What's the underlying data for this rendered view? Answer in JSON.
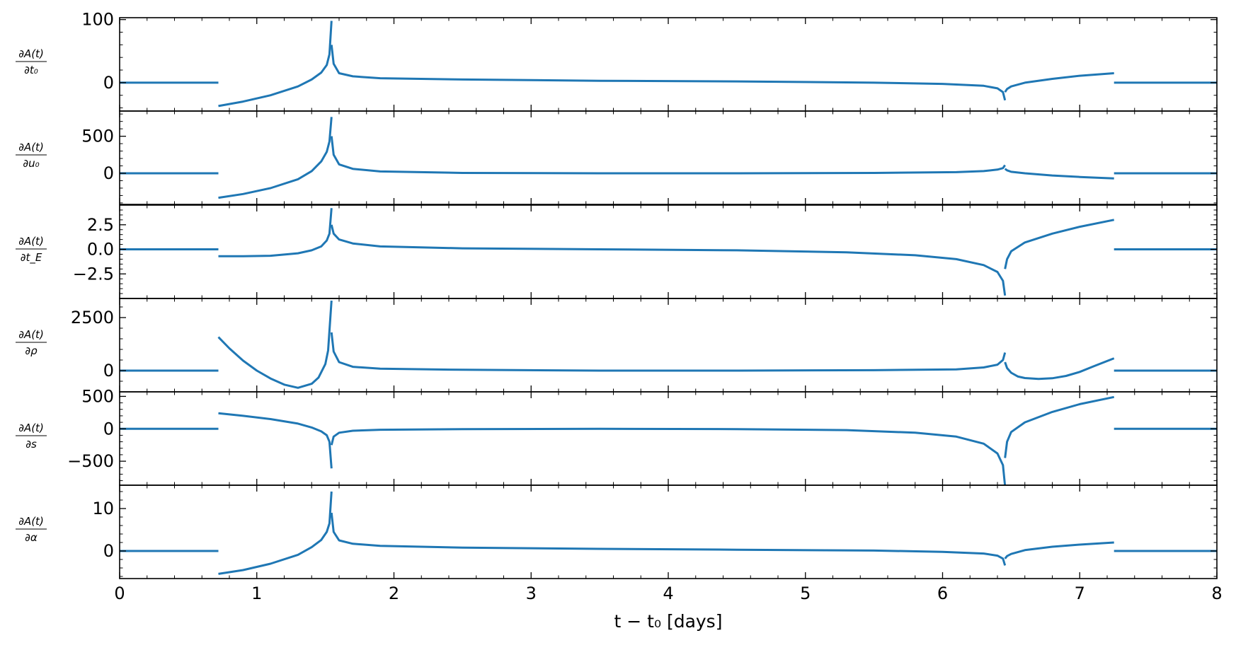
{
  "chart_data": {
    "type": "line",
    "xlabel": "t − t₀ [days]",
    "xlim": [
      0,
      8
    ],
    "x_ticks": [
      "0",
      "1",
      "2",
      "3",
      "4",
      "5",
      "6",
      "7",
      "8"
    ],
    "line_color": "#1f77b4",
    "grid": false,
    "legend": "none",
    "panels": [
      {
        "ylabel_num": "∂A(t)",
        "ylabel_den": "∂t₀",
        "ylim": [
          -45,
          103
        ],
        "y_ticks": [
          {
            "v": 100,
            "label": "100"
          },
          {
            "v": 0,
            "label": "0"
          }
        ],
        "series": [
          {
            "x": [
              0,
              0.72
            ],
            "y": [
              0,
              0
            ]
          },
          {
            "x": [
              0.72,
              0.9,
              1.1,
              1.3,
              1.4,
              1.47,
              1.51,
              1.53,
              1.545
            ],
            "y": [
              -37,
              -30,
              -20,
              -6,
              5,
              16,
              28,
              45,
              98
            ]
          },
          {
            "x": [
              1.545,
              1.56,
              1.6,
              1.7,
              1.9,
              2.5,
              3.5,
              4.5,
              5.5,
              6.0,
              6.3,
              6.4,
              6.44,
              6.455
            ],
            "y": [
              60,
              30,
              15,
              10,
              7,
              5,
              3,
              2,
              0,
              -2,
              -5,
              -9,
              -15,
              -28
            ]
          },
          {
            "x": [
              6.455,
              6.47,
              6.5,
              6.6,
              6.8,
              7.0,
              7.25
            ],
            "y": [
              -15,
              -10,
              -6,
              0,
              6,
              11,
              15
            ]
          },
          {
            "x": [
              7.25,
              8
            ],
            "y": [
              0,
              0
            ]
          }
        ]
      },
      {
        "ylabel_num": "∂A(t)",
        "ylabel_den": "∂u₀",
        "ylim": [
          -420,
          840
        ],
        "y_ticks": [
          {
            "v": 500,
            "label": "500"
          },
          {
            "v": 0,
            "label": "0"
          }
        ],
        "series": [
          {
            "x": [
              0,
              0.72
            ],
            "y": [
              0,
              0
            ]
          },
          {
            "x": [
              0.72,
              0.9,
              1.1,
              1.3,
              1.4,
              1.47,
              1.51,
              1.53,
              1.545
            ],
            "y": [
              -330,
              -280,
              -200,
              -80,
              30,
              160,
              290,
              430,
              760
            ]
          },
          {
            "x": [
              1.545,
              1.56,
              1.6,
              1.7,
              1.9,
              2.5,
              3.5,
              4.5,
              5.5,
              6.1,
              6.3,
              6.4,
              6.44,
              6.455
            ],
            "y": [
              500,
              250,
              120,
              60,
              25,
              5,
              0,
              0,
              5,
              15,
              30,
              50,
              70,
              110
            ]
          },
          {
            "x": [
              6.455,
              6.47,
              6.5,
              6.6,
              6.8,
              7.0,
              7.25
            ],
            "y": [
              60,
              40,
              20,
              0,
              -30,
              -50,
              -70
            ]
          },
          {
            "x": [
              7.25,
              8
            ],
            "y": [
              0,
              0
            ]
          }
        ]
      },
      {
        "ylabel_num": "∂A(t)",
        "ylabel_den": "∂t_E",
        "ylim": [
          -5.0,
          4.5
        ],
        "y_ticks": [
          {
            "v": 2.5,
            "label": "2.5"
          },
          {
            "v": 0,
            "label": "0.0"
          },
          {
            "v": -2.5,
            "label": "−2.5"
          }
        ],
        "series": [
          {
            "x": [
              0,
              0.72
            ],
            "y": [
              0,
              0
            ]
          },
          {
            "x": [
              0.72,
              0.9,
              1.1,
              1.3,
              1.4,
              1.47,
              1.51,
              1.53,
              1.545
            ],
            "y": [
              -0.7,
              -0.7,
              -0.65,
              -0.4,
              -0.1,
              0.3,
              0.9,
              1.6,
              4.2
            ]
          },
          {
            "x": [
              1.545,
              1.56,
              1.6,
              1.7,
              1.9,
              2.5,
              3.5,
              4.5,
              5.3,
              5.8,
              6.1,
              6.3,
              6.4,
              6.44,
              6.455
            ],
            "y": [
              2.5,
              1.6,
              1.0,
              0.6,
              0.3,
              0.1,
              0.0,
              -0.1,
              -0.3,
              -0.6,
              -1.0,
              -1.6,
              -2.3,
              -3.2,
              -4.7
            ]
          },
          {
            "x": [
              6.455,
              6.47,
              6.5,
              6.6,
              6.8,
              7.0,
              7.25
            ],
            "y": [
              -2.0,
              -1.0,
              -0.2,
              0.7,
              1.6,
              2.3,
              3.0
            ]
          },
          {
            "x": [
              7.25,
              8
            ],
            "y": [
              0,
              0
            ]
          }
        ]
      },
      {
        "ylabel_num": "∂A(t)",
        "ylabel_den": "∂ρ",
        "ylim": [
          -1000,
          3400
        ],
        "y_ticks": [
          {
            "v": 2500,
            "label": "2500"
          },
          {
            "v": 0,
            "label": "0"
          }
        ],
        "series": [
          {
            "x": [
              0,
              0.72
            ],
            "y": [
              0,
              0
            ]
          },
          {
            "x": [
              0.72,
              0.8,
              0.9,
              1.0,
              1.1,
              1.2,
              1.3,
              1.4,
              1.45,
              1.5,
              1.52,
              1.545
            ],
            "y": [
              1580,
              1050,
              470,
              0,
              -370,
              -660,
              -810,
              -620,
              -330,
              310,
              950,
              3300
            ]
          },
          {
            "x": [
              1.545,
              1.56,
              1.6,
              1.7,
              1.9,
              2.5,
              3.5,
              4.5,
              5.5,
              6.1,
              6.3,
              6.4,
              6.44,
              6.455
            ],
            "y": [
              1800,
              900,
              400,
              180,
              90,
              40,
              0,
              0,
              20,
              60,
              150,
              280,
              500,
              850
            ]
          },
          {
            "x": [
              6.455,
              6.47,
              6.5,
              6.55,
              6.6,
              6.7,
              6.8,
              6.9,
              7.0,
              7.1,
              7.25
            ],
            "y": [
              400,
              120,
              -100,
              -280,
              -350,
              -390,
              -360,
              -250,
              -60,
              200,
              580
            ]
          },
          {
            "x": [
              7.25,
              8
            ],
            "y": [
              0,
              0
            ]
          }
        ]
      },
      {
        "ylabel_num": "∂A(t)",
        "ylabel_den": "∂s",
        "ylim": [
          -870,
          570
        ],
        "y_ticks": [
          {
            "v": 500,
            "label": "500"
          },
          {
            "v": 0,
            "label": "0"
          },
          {
            "v": -500,
            "label": "−500"
          }
        ],
        "series": [
          {
            "x": [
              0,
              0.72
            ],
            "y": [
              0,
              0
            ]
          },
          {
            "x": [
              0.72,
              0.9,
              1.1,
              1.3,
              1.4,
              1.47,
              1.51,
              1.53,
              1.545
            ],
            "y": [
              240,
              200,
              150,
              80,
              20,
              -40,
              -100,
              -200,
              -610
            ]
          },
          {
            "x": [
              1.545,
              1.56,
              1.6,
              1.7,
              1.9,
              2.5,
              3.5,
              4.5,
              5.3,
              5.8,
              6.1,
              6.3,
              6.4,
              6.44,
              6.455
            ],
            "y": [
              -250,
              -120,
              -60,
              -30,
              -15,
              -5,
              0,
              -5,
              -20,
              -60,
              -120,
              -230,
              -380,
              -560,
              -880
            ]
          },
          {
            "x": [
              6.455,
              6.47,
              6.5,
              6.6,
              6.8,
              7.0,
              7.25
            ],
            "y": [
              -450,
              -200,
              -50,
              100,
              260,
              380,
              490
            ]
          },
          {
            "x": [
              7.25,
              8
            ],
            "y": [
              0,
              0
            ]
          }
        ]
      },
      {
        "ylabel_num": "∂A(t)",
        "ylabel_den": "∂α",
        "ylim": [
          -6.5,
          15.5
        ],
        "y_ticks": [
          {
            "v": 10,
            "label": "10"
          },
          {
            "v": 0,
            "label": "0"
          }
        ],
        "series": [
          {
            "x": [
              0,
              0.72
            ],
            "y": [
              0,
              0
            ]
          },
          {
            "x": [
              0.72,
              0.9,
              1.1,
              1.3,
              1.4,
              1.47,
              1.51,
              1.53,
              1.545
            ],
            "y": [
              -5.4,
              -4.5,
              -3.0,
              -0.9,
              0.9,
              2.6,
              4.5,
              6.5,
              14.0
            ]
          },
          {
            "x": [
              1.545,
              1.56,
              1.6,
              1.7,
              1.9,
              2.5,
              3.5,
              4.5,
              5.5,
              6.0,
              6.3,
              6.4,
              6.44,
              6.455
            ],
            "y": [
              9.0,
              4.5,
              2.5,
              1.7,
              1.2,
              0.8,
              0.5,
              0.3,
              0.1,
              -0.2,
              -0.6,
              -1.1,
              -1.8,
              -3.4
            ]
          },
          {
            "x": [
              6.455,
              6.47,
              6.5,
              6.6,
              6.8,
              7.0,
              7.25
            ],
            "y": [
              -1.8,
              -1.2,
              -0.7,
              0.2,
              1.0,
              1.5,
              2.0
            ]
          },
          {
            "x": [
              7.25,
              8
            ],
            "y": [
              0,
              0
            ]
          }
        ]
      }
    ]
  }
}
